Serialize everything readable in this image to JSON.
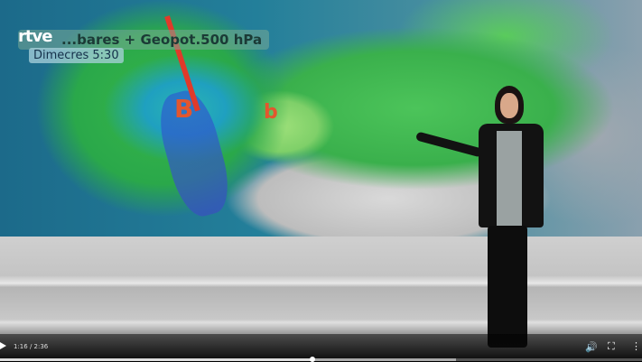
{
  "video": {
    "logo": "rtve",
    "map_title": "...bares + Geopot.500 hPa",
    "map_subtitle": "Dimecres 5:30",
    "pressure_labels": [
      "B",
      "b"
    ]
  },
  "player": {
    "time_display": "1:16 / 2:36",
    "progress_fraction": 0.487,
    "buffered_fraction": 0.71,
    "icons": [
      "play-icon",
      "volume-icon",
      "fullscreen-icon",
      "more-options-icon"
    ]
  }
}
